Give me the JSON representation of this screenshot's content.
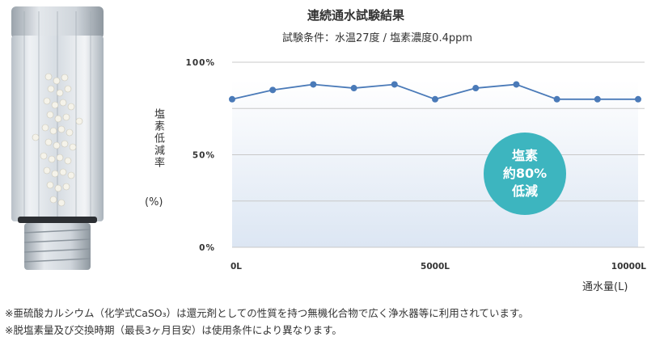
{
  "chart_data": {
    "type": "line",
    "title": "連続通水試験結果",
    "subtitle": "試験条件：水温27度 / 塩素濃度0.4ppm",
    "ylabel": "塩素低減率",
    "yunit": "(%)",
    "xlabel": "通水量(L)",
    "ylim": [
      0,
      100
    ],
    "xlim": [
      0,
      10000
    ],
    "ytick_labels": [
      "100%",
      "50%",
      "0%"
    ],
    "yticks": [
      100,
      50,
      0
    ],
    "xtick_labels": [
      "0L",
      "5000L",
      "10000L"
    ],
    "xticks": [
      0,
      5000,
      10000
    ],
    "x": [
      0,
      1000,
      2000,
      3000,
      4000,
      5000,
      6000,
      7000,
      8000,
      9000,
      10000
    ],
    "series": [
      {
        "values": [
          80,
          85,
          88,
          86,
          88,
          80,
          86,
          88,
          80,
          80,
          80
        ]
      }
    ],
    "grid": true,
    "badge": {
      "lines": [
        "塩素",
        "約80%",
        "低減"
      ]
    }
  },
  "notes": [
    "※亜硫酸カルシウム（化学式CaSO₃）は還元剤としての性質を持つ無機化合物で広く浄水器等に利用されています。",
    "※脱塩素量及び交換時期（最長3ヶ月目安）は使用条件により異なります。"
  ],
  "colors": {
    "line": "#4a7ab8",
    "marker": "#4a7ab8",
    "badge": "#3db5bf",
    "grid": "#c8c8c8",
    "fill_top": "#ffffff",
    "fill_bottom": "#dce6f3"
  },
  "product_image": {
    "icon": "shower-filter-cartridge-icon"
  }
}
